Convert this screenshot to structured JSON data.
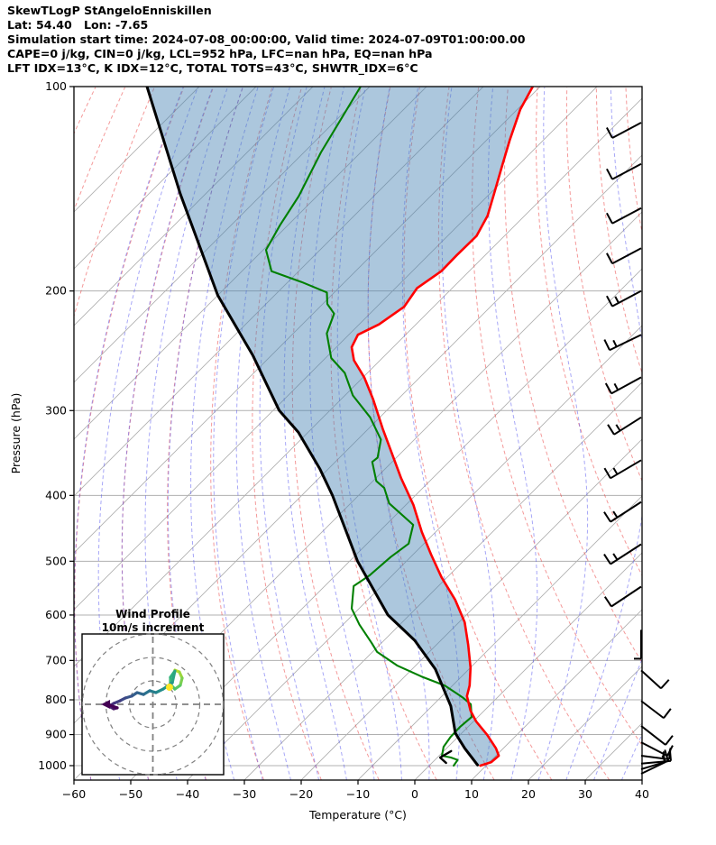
{
  "header": {
    "line1": "SkewTLogP StAngeloEnniskillen",
    "line2": "Lat: 54.40   Lon: -7.65",
    "line3": "Simulation start time: 2024-07-08_00:00:00, Valid time: 2024-07-09T01:00:00.00",
    "line4": "CAPE=0 j/kg, CIN=0 j/kg, LCL=952 hPa, LFC=nan hPa, EQ=nan hPa",
    "line5": "LFT IDX=13°C, K IDX=12°C, TOTAL TOTS=43°C, SHWTR_IDX=6°C"
  },
  "axes": {
    "x_label": "Temperature (°C)",
    "y_label": "Pressure (hPa)",
    "x_ticks": [
      {
        "v": -60,
        "label": "−60"
      },
      {
        "v": -50,
        "label": "−50"
      },
      {
        "v": -40,
        "label": "−40"
      },
      {
        "v": -30,
        "label": "−30"
      },
      {
        "v": -20,
        "label": "−20"
      },
      {
        "v": -10,
        "label": "−10"
      },
      {
        "v": 0,
        "label": "0"
      },
      {
        "v": 10,
        "label": "10"
      },
      {
        "v": 20,
        "label": "20"
      },
      {
        "v": 30,
        "label": "30"
      },
      {
        "v": 40,
        "label": "40"
      }
    ],
    "y_ticks": [
      {
        "v": 100,
        "label": "100"
      },
      {
        "v": 200,
        "label": "200"
      },
      {
        "v": 300,
        "label": "300"
      },
      {
        "v": 400,
        "label": "400"
      },
      {
        "v": 500,
        "label": "500"
      },
      {
        "v": 600,
        "label": "600"
      },
      {
        "v": 700,
        "label": "700"
      },
      {
        "v": 800,
        "label": "800"
      },
      {
        "v": 900,
        "label": "900"
      },
      {
        "v": 1000,
        "label": "1000"
      }
    ],
    "x_range_c": [
      -60,
      40
    ],
    "p_range_hpa": [
      100,
      1050
    ]
  },
  "chart_data": {
    "type": "skewt-logp",
    "skew_deg": 45,
    "grid": {
      "isobar_color": "#b0b0b0",
      "isotherms": {
        "start": -160,
        "end": 40,
        "step": 10,
        "color": "#b0b0b0"
      },
      "dry_adiabats": {
        "theta_start": -100,
        "theta_end": 160,
        "step": 10,
        "color": "rgba(235,70,70,0.55)"
      },
      "moist_adiabats": {
        "t0_start": -60,
        "t0_end": 45,
        "step": 5,
        "color": "rgba(80,80,240,0.5)"
      }
    },
    "series": [
      {
        "name": "temperature",
        "color": "#ff0000",
        "width": 2.6,
        "points": [
          [
            100,
            -101.3
          ],
          [
            108,
            -99.5
          ],
          [
            120,
            -95.9
          ],
          [
            131,
            -92.7
          ],
          [
            144,
            -89.2
          ],
          [
            155,
            -86.5
          ],
          [
            166,
            -84.9
          ],
          [
            177,
            -85.0
          ],
          [
            187,
            -84.9
          ],
          [
            198,
            -86.2
          ],
          [
            211,
            -85.2
          ],
          [
            224,
            -86.5
          ],
          [
            232,
            -88.4
          ],
          [
            242,
            -87.3
          ],
          [
            253,
            -84.6
          ],
          [
            268,
            -79.8
          ],
          [
            289,
            -74.3
          ],
          [
            319,
            -67.5
          ],
          [
            349,
            -61.1
          ],
          [
            377,
            -55.6
          ],
          [
            413,
            -48.7
          ],
          [
            453,
            -42.4
          ],
          [
            489,
            -36.8
          ],
          [
            528,
            -31.0
          ],
          [
            570,
            -24.6
          ],
          [
            615,
            -19.0
          ],
          [
            664,
            -14.4
          ],
          [
            717,
            -10.0
          ],
          [
            762,
            -7.0
          ],
          [
            790,
            -5.6
          ],
          [
            830,
            -2.4
          ],
          [
            861,
            0.5
          ],
          [
            901,
            4.8
          ],
          [
            943,
            8.7
          ],
          [
            967,
            10.5
          ],
          [
            988,
            10.3
          ],
          [
            1000,
            9.0
          ]
        ]
      },
      {
        "name": "dewpoint",
        "color": "#008000",
        "width": 2.1,
        "points": [
          [
            100,
            -131.6
          ],
          [
            114,
            -128.9
          ],
          [
            125,
            -127.0
          ],
          [
            145,
            -123.2
          ],
          [
            160,
            -121.4
          ],
          [
            174,
            -119.5
          ],
          [
            187,
            -114.8
          ],
          [
            194,
            -107.6
          ],
          [
            201,
            -101.3
          ],
          [
            209,
            -99.2
          ],
          [
            216,
            -96.3
          ],
          [
            231,
            -94.1
          ],
          [
            251,
            -89.0
          ],
          [
            264,
            -84.0
          ],
          [
            285,
            -78.6
          ],
          [
            307,
            -71.7
          ],
          [
            331,
            -65.9
          ],
          [
            352,
            -63.3
          ],
          [
            357,
            -63.5
          ],
          [
            381,
            -59.4
          ],
          [
            390,
            -56.8
          ],
          [
            411,
            -53.2
          ],
          [
            442,
            -45.2
          ],
          [
            471,
            -42.7
          ],
          [
            493,
            -43.5
          ],
          [
            525,
            -44.0
          ],
          [
            544,
            -44.9
          ],
          [
            587,
            -41.3
          ],
          [
            620,
            -37.1
          ],
          [
            660,
            -31.7
          ],
          [
            680,
            -29.2
          ],
          [
            712,
            -23.3
          ],
          [
            739,
            -17.1
          ],
          [
            762,
            -11.4
          ],
          [
            793,
            -6.2
          ],
          [
            812,
            -3.5
          ],
          [
            848,
            -1.1
          ],
          [
            877,
            -1.4
          ],
          [
            907,
            -1.3
          ],
          [
            938,
            -0.8
          ],
          [
            967,
            0.5
          ],
          [
            973,
            2.4
          ],
          [
            981,
            4.0
          ],
          [
            1000,
            4.3
          ]
        ]
      },
      {
        "name": "parcel",
        "color": "#000000",
        "width": 3,
        "points": [
          [
            100,
            -169.2
          ],
          [
            144,
            -144.4
          ],
          [
            203,
            -120.0
          ],
          [
            249,
            -103.2
          ],
          [
            300,
            -88.9
          ],
          [
            323,
            -81.7
          ],
          [
            366,
            -71.4
          ],
          [
            400,
            -64.6
          ],
          [
            500,
            -48.6
          ],
          [
            600,
            -33.8
          ],
          [
            654,
            -24.6
          ],
          [
            721,
            -15.9
          ],
          [
            817,
            -6.7
          ],
          [
            896,
            -1.1
          ],
          [
            943,
            3.2
          ],
          [
            998,
            8.4
          ]
        ]
      },
      {
        "name": "parcel-spur",
        "color": "#000000",
        "width": 2.4,
        "points": [
          [
            952,
            1.3
          ],
          [
            973,
            0.5
          ],
          [
            991,
            2.5
          ]
        ]
      }
    ],
    "shade": {
      "between": [
        "parcel",
        "temperature"
      ],
      "color": "rgba(70,130,180,0.45)"
    },
    "wind_barbs": {
      "color": "#000000",
      "barbs": [
        {
          "p": 113,
          "v": [
            -32,
            17
          ],
          "ticks": [
            1
          ],
          "side": 1
        },
        {
          "p": 130,
          "v": [
            -32,
            17
          ],
          "ticks": [
            1
          ],
          "side": 1
        },
        {
          "p": 151,
          "v": [
            -32,
            17
          ],
          "ticks": [
            1
          ],
          "side": 1
        },
        {
          "p": 173,
          "v": [
            -32,
            17
          ],
          "ticks": [
            1
          ],
          "side": 1
        },
        {
          "p": 200,
          "v": [
            -32,
            17
          ],
          "ticks": [
            1,
            0.5
          ],
          "side": 1
        },
        {
          "p": 232,
          "v": [
            -35,
            17
          ],
          "ticks": [
            1,
            0.5
          ],
          "side": 1
        },
        {
          "p": 268,
          "v": [
            -33,
            18
          ],
          "ticks": [
            1,
            0.5
          ],
          "side": 1
        },
        {
          "p": 307,
          "v": [
            -30,
            19
          ],
          "ticks": [
            1,
            0.5
          ],
          "side": 1
        },
        {
          "p": 355,
          "v": [
            -34,
            20
          ],
          "ticks": [
            1,
            0.5
          ],
          "side": 1
        },
        {
          "p": 409,
          "v": [
            -34,
            22
          ],
          "ticks": [
            1,
            0.5
          ],
          "side": 1
        },
        {
          "p": 472,
          "v": [
            -34,
            22
          ],
          "ticks": [
            1,
            0.5
          ],
          "side": 1
        },
        {
          "p": 545,
          "v": [
            -33,
            22
          ],
          "ticks": [
            1
          ],
          "side": 1
        },
        {
          "p": 631,
          "v": [
            0,
            32
          ],
          "ticks": [
            0.5
          ],
          "side": 1
        },
        {
          "p": 724,
          "v": [
            22,
            20
          ],
          "ticks": [
            1
          ],
          "side": -1
        },
        {
          "p": 803,
          "v": [
            25,
            19
          ],
          "ticks": [
            1
          ],
          "side": -1
        },
        {
          "p": 874,
          "v": [
            27,
            21
          ],
          "ticks": [
            1
          ],
          "side": -1
        },
        {
          "p": 924,
          "v": [
            29,
            15
          ],
          "ticks": [
            1
          ],
          "side": -1
        },
        {
          "p": 967,
          "v": [
            31,
            4
          ],
          "ticks": [
            1,
            0.5
          ],
          "side": -1
        },
        {
          "p": 993,
          "v": [
            33,
            -3
          ],
          "ticks": [
            1,
            0.5
          ],
          "side": -1
        },
        {
          "p": 1012,
          "v": [
            30,
            -9
          ],
          "ticks": [
            1
          ],
          "side": -1
        },
        {
          "p": 1028,
          "v": [
            27,
            -13
          ],
          "ticks": [
            0.5
          ],
          "side": -1
        }
      ]
    },
    "hodograph": {
      "title": "Wind Profile",
      "subtitle": "10m/s increment",
      "rings_ms": [
        10,
        20,
        30
      ],
      "ring_color": "#808080",
      "trace_uv_ms": [
        [
          9.4,
          14.6
        ],
        [
          11.3,
          13.8
        ],
        [
          12.5,
          11.2
        ],
        [
          11.7,
          8.1
        ],
        [
          9.4,
          6.5
        ],
        [
          7.5,
          8.5
        ],
        [
          7.5,
          11.5
        ],
        [
          9.4,
          14.2
        ],
        [
          8.3,
          9.2
        ],
        [
          4.4,
          6.5
        ],
        [
          1.3,
          5.0
        ],
        [
          -1.3,
          5.8
        ],
        [
          -4.0,
          4.2
        ],
        [
          -6.7,
          5.0
        ],
        [
          -9.0,
          3.5
        ],
        [
          -11.7,
          2.7
        ],
        [
          -14.0,
          1.5
        ],
        [
          -16.7,
          0.4
        ],
        [
          -18.7,
          -0.8
        ],
        [
          -16.7,
          -1.9
        ],
        [
          -15.2,
          -1.5
        ],
        [
          -19.4,
          0.0
        ]
      ],
      "trace_colors": [
        "#bddf26",
        "#5ec962",
        "#31b57b",
        "#21918c",
        "#2c6e8e",
        "#3b528b",
        "#472d7b",
        "#440154"
      ],
      "marker_uv_ms": [
        7.1,
        7.3
      ],
      "marker_color": "#fde725"
    }
  }
}
